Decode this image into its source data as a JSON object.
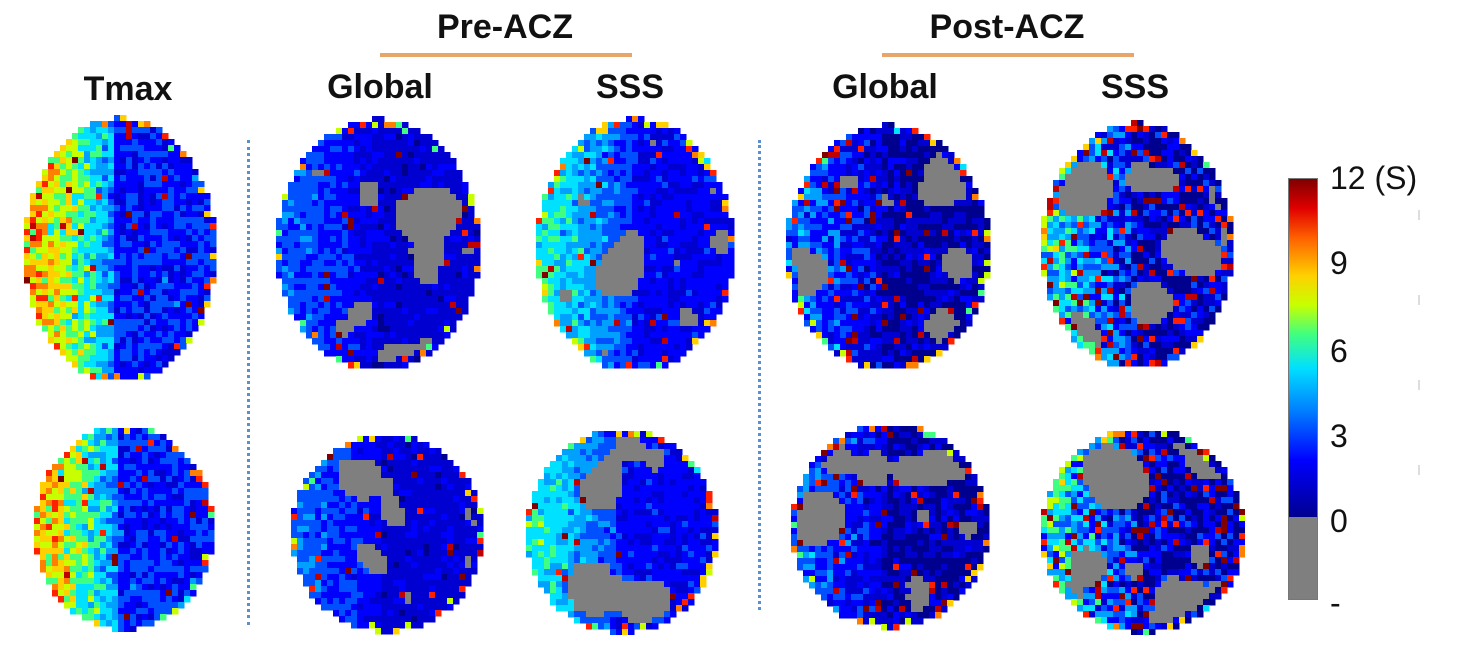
{
  "headers": {
    "pre_group": "Pre-ACZ",
    "post_group": "Post-ACZ",
    "tmax": "Tmax",
    "pre_global": "Global",
    "pre_sss": "SSS",
    "post_global": "Global",
    "post_sss": "SSS"
  },
  "colorbar": {
    "ticks": [
      "12 (S)",
      "9",
      "6",
      "3",
      "0",
      "-"
    ],
    "colormap": "jet",
    "below_zero_color": "#7f7f7f"
  },
  "panels": [
    {
      "id": "tmax-top",
      "map": "tmax"
    },
    {
      "id": "pre-global-top",
      "map": "pre-global"
    },
    {
      "id": "pre-sss-top",
      "map": "pre-sss"
    },
    {
      "id": "post-global-top",
      "map": "post-global"
    },
    {
      "id": "post-sss-top",
      "map": "post-sss"
    },
    {
      "id": "tmax-bottom",
      "map": "tmax"
    },
    {
      "id": "pre-global-bottom",
      "map": "pre-global"
    },
    {
      "id": "pre-sss-bottom",
      "map": "pre-sss"
    },
    {
      "id": "post-global-bottom",
      "map": "post-global"
    },
    {
      "id": "post-sss-bottom",
      "map": "post-sss"
    }
  ]
}
